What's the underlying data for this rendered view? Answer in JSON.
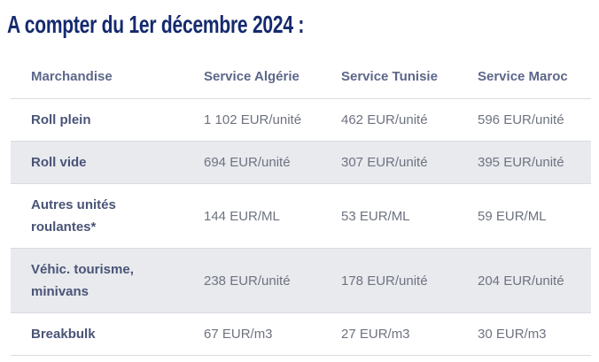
{
  "title": "A compter du 1er décembre 2024 :",
  "table": {
    "columns": [
      "Marchandise",
      "Service Algérie",
      "Service Tunisie",
      "Service Maroc"
    ],
    "rows": [
      {
        "label": "Roll plein",
        "values": [
          "1 102 EUR/unité",
          "462 EUR/unité",
          "596 EUR/unité"
        ]
      },
      {
        "label": "Roll vide",
        "values": [
          "694 EUR/unité",
          "307 EUR/unité",
          "395 EUR/unité"
        ]
      },
      {
        "label": "Autres unités roulantes*",
        "values": [
          "144 EUR/ML",
          "53 EUR/ML",
          "59 EUR/ML"
        ]
      },
      {
        "label": "Véhic. tourisme, minivans",
        "values": [
          "238 EUR/unité",
          "178 EUR/unité",
          "204 EUR/unité"
        ]
      },
      {
        "label": "Breakbulk",
        "values": [
          "67 EUR/m3",
          "27 EUR/m3",
          "30 EUR/m3"
        ]
      }
    ]
  },
  "colors": {
    "title": "#152a6e",
    "header_text": "#5d6789",
    "label_text": "#4a5477",
    "value_text": "#6e7380",
    "row_stripe": "#e8eaee",
    "border": "#d8dbe1",
    "background": "#ffffff"
  }
}
